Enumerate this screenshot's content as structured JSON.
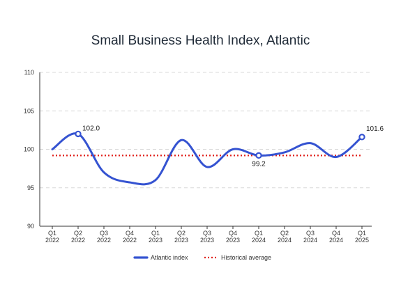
{
  "chart_data": {
    "type": "line",
    "title": "Small Business Health Index, Atlantic",
    "xlabel": "",
    "ylabel": "",
    "ylim": [
      90,
      110
    ],
    "yticks": [
      "90",
      "95",
      "100",
      "105",
      "110"
    ],
    "categories": [
      [
        "Q1",
        "2022"
      ],
      [
        "Q2",
        "2022"
      ],
      [
        "Q3",
        "2022"
      ],
      [
        "Q4",
        "2022"
      ],
      [
        "Q1",
        "2023"
      ],
      [
        "Q2",
        "2023"
      ],
      [
        "Q3",
        "2023"
      ],
      [
        "Q4",
        "2023"
      ],
      [
        "Q1",
        "2024"
      ],
      [
        "Q2",
        "2024"
      ],
      [
        "Q3",
        "2024"
      ],
      [
        "Q4",
        "2024"
      ],
      [
        "Q1",
        "2025"
      ]
    ],
    "series": [
      {
        "name": "Atlantic index",
        "color": "#3553d1",
        "values": [
          100.0,
          102.0,
          97.0,
          95.7,
          96.0,
          101.2,
          97.7,
          100.0,
          99.2,
          99.6,
          100.8,
          99.0,
          101.6
        ]
      }
    ],
    "reference_line": {
      "name": "Historical average",
      "value": 99.2,
      "color": "#e0201b",
      "style": "dotted"
    },
    "annotations": [
      {
        "index": 1,
        "text": "102.0"
      },
      {
        "index": 8,
        "text": "99.2"
      },
      {
        "index": 12,
        "text": "101.6"
      }
    ],
    "grid": true,
    "legend_position": "bottom"
  }
}
